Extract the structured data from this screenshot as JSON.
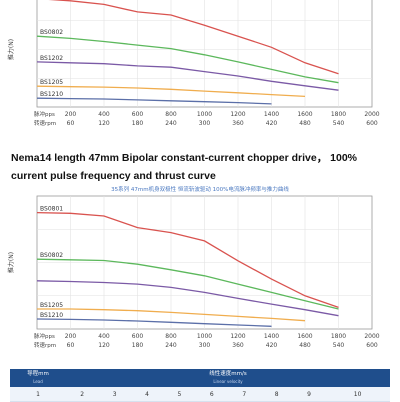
{
  "heading": "Nema14 length 47mm Bipolar constant-current chopper drive， 100% current pulse frequency and thrust curve",
  "chart_data": [
    {
      "type": "line",
      "title": "",
      "ylabel": "推力(N)",
      "x_row1_label": "脉冲pps",
      "x_row2_label": "转速rpm",
      "x_pps": [
        200,
        400,
        600,
        800,
        1000,
        1200,
        1400,
        1600,
        1800,
        2000
      ],
      "x_rpm": [
        60,
        120,
        180,
        240,
        300,
        360,
        420,
        480,
        540,
        600
      ],
      "series": [
        {
          "name": "",
          "color": "#d9534f",
          "points": [
            [
              0,
              245
            ],
            [
              200,
              240
            ],
            [
              400,
              232
            ],
            [
              600,
              215
            ],
            [
              800,
              208
            ],
            [
              1000,
              185
            ],
            [
              1200,
              160
            ],
            [
              1400,
              135
            ],
            [
              1600,
              100
            ],
            [
              1800,
              75
            ]
          ]
        },
        {
          "name": "BS0802",
          "color": "#5cb85c",
          "points": [
            [
              0,
              160
            ],
            [
              200,
              155
            ],
            [
              400,
              148
            ],
            [
              600,
              140
            ],
            [
              800,
              132
            ],
            [
              1000,
              118
            ],
            [
              1200,
              102
            ],
            [
              1400,
              85
            ],
            [
              1600,
              68
            ],
            [
              1800,
              55
            ]
          ]
        },
        {
          "name": "BS1202",
          "color": "#7b5aa6",
          "points": [
            [
              0,
              102
            ],
            [
              200,
              100
            ],
            [
              400,
              98
            ],
            [
              600,
              93
            ],
            [
              800,
              90
            ],
            [
              1000,
              80
            ],
            [
              1200,
              70
            ],
            [
              1400,
              58
            ],
            [
              1600,
              48
            ],
            [
              1800,
              38
            ]
          ]
        },
        {
          "name": "BS1205",
          "color": "#f0ad4e",
          "points": [
            [
              0,
              47
            ],
            [
              200,
              46
            ],
            [
              400,
              45
            ],
            [
              600,
              43
            ],
            [
              800,
              40
            ],
            [
              1000,
              36
            ],
            [
              1200,
              32
            ],
            [
              1400,
              28
            ],
            [
              1600,
              24
            ]
          ]
        },
        {
          "name": "BS1210",
          "color": "#5b6fa8",
          "points": [
            [
              0,
              20
            ],
            [
              200,
              19
            ],
            [
              400,
              18
            ],
            [
              600,
              16
            ],
            [
              800,
              14
            ],
            [
              1000,
              12
            ],
            [
              1200,
              10
            ],
            [
              1400,
              7
            ]
          ]
        }
      ]
    },
    {
      "type": "line",
      "title": "35系列 47mm机身双极性 恒流斩波驱动 100%电流脉冲频率与推力曲线",
      "ylabel": "推力(N)",
      "x_row1_label": "脉冲pps",
      "x_row2_label": "转速rpm",
      "x_pps": [
        200,
        400,
        600,
        800,
        1000,
        1200,
        1400,
        1600,
        1800,
        2000
      ],
      "x_rpm": [
        60,
        120,
        180,
        240,
        300,
        360,
        420,
        480,
        540,
        600
      ],
      "series": [
        {
          "name": "BS0801",
          "color": "#d9534f",
          "points": [
            [
              0,
              350
            ],
            [
              200,
              348
            ],
            [
              400,
              340
            ],
            [
              600,
              305
            ],
            [
              800,
              290
            ],
            [
              1000,
              265
            ],
            [
              1200,
              205
            ],
            [
              1400,
              150
            ],
            [
              1600,
              100
            ],
            [
              1800,
              65
            ]
          ]
        },
        {
          "name": "BS0802",
          "color": "#5cb85c",
          "points": [
            [
              0,
              210
            ],
            [
              200,
              208
            ],
            [
              400,
              206
            ],
            [
              600,
              195
            ],
            [
              800,
              178
            ],
            [
              1000,
              160
            ],
            [
              1200,
              135
            ],
            [
              1400,
              110
            ],
            [
              1600,
              85
            ],
            [
              1800,
              60
            ]
          ]
        },
        {
          "name": "",
          "color": "#7b5aa6",
          "points": [
            [
              0,
              145
            ],
            [
              200,
              143
            ],
            [
              400,
              140
            ],
            [
              600,
              135
            ],
            [
              800,
              125
            ],
            [
              1000,
              110
            ],
            [
              1200,
              92
            ],
            [
              1400,
              75
            ],
            [
              1600,
              58
            ],
            [
              1800,
              40
            ]
          ]
        },
        {
          "name": "BS1205",
          "color": "#f0ad4e",
          "points": [
            [
              0,
              60
            ],
            [
              200,
              60
            ],
            [
              400,
              58
            ],
            [
              600,
              55
            ],
            [
              800,
              50
            ],
            [
              1000,
              44
            ],
            [
              1200,
              38
            ],
            [
              1400,
              32
            ],
            [
              1600,
              25
            ]
          ]
        },
        {
          "name": "BS1210",
          "color": "#5b6fa8",
          "points": [
            [
              0,
              30
            ],
            [
              200,
              29
            ],
            [
              400,
              27
            ],
            [
              600,
              24
            ],
            [
              800,
              20
            ],
            [
              1000,
              16
            ],
            [
              1200,
              12
            ],
            [
              1400,
              8
            ]
          ]
        }
      ]
    }
  ],
  "table": {
    "col1_title": "导程mm",
    "col1_sub": "Lead",
    "col2_title": "线性速度mm/s",
    "col2_sub": "Linear velocity",
    "row": [
      "1",
      "2",
      "3",
      "4",
      "5",
      "6",
      "7",
      "8",
      "9",
      "10"
    ]
  }
}
